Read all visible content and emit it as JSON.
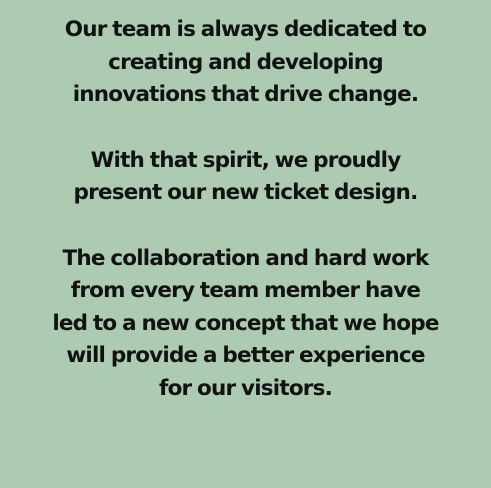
{
  "paragraphs": [
    {
      "lines": [
        "Our team is always dedicated to",
        "creating and developing",
        "innovations that drive change."
      ]
    },
    {
      "lines": [
        "With that spirit, we proudly",
        "present our new ticket design."
      ]
    },
    {
      "lines": [
        "The collaboration and hard work",
        "from every team member have",
        "led to a new concept that we hope",
        "will provide a better experience",
        "for our visitors."
      ]
    }
  ],
  "colors": {
    "background": "#adcbb3",
    "text": "#121212"
  }
}
